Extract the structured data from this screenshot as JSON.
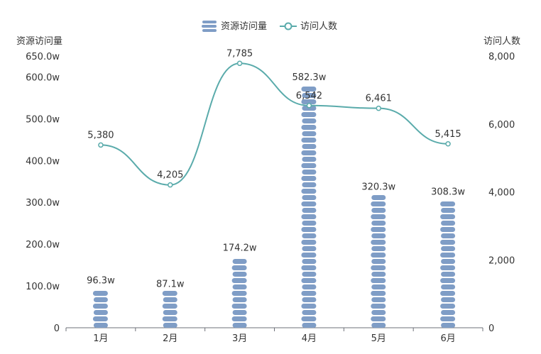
{
  "chart_data": {
    "type": "bar",
    "categories": [
      "1月",
      "2月",
      "3月",
      "4月",
      "5月",
      "6月"
    ],
    "series": [
      {
        "name": "资源访问量",
        "type": "bar",
        "axis": "left",
        "values": [
          96.3,
          87.1,
          174.2,
          582.3,
          320.3,
          308.3
        ],
        "labels": [
          "96.3w",
          "87.1w",
          "174.2w",
          "582.3w",
          "320.3w",
          "308.3w"
        ],
        "color": "#7f9dc6"
      },
      {
        "name": "访问人数",
        "type": "line",
        "axis": "right",
        "smooth": true,
        "values": [
          5380,
          4205,
          7785,
          6542,
          6461,
          5415
        ],
        "labels": [
          "5,380",
          "4,205",
          "7,785",
          "6,542",
          "6,461",
          "5,415"
        ],
        "color": "#5aabab"
      }
    ],
    "y_left": {
      "name": "资源访问量",
      "ticks": [
        0,
        100,
        200,
        300,
        400,
        500,
        600,
        650
      ],
      "tick_labels": [
        "0",
        "100.0w",
        "200.0w",
        "300.0w",
        "400.0w",
        "500.0w",
        "600.0w",
        "650.0w"
      ],
      "min": 0,
      "max": 650
    },
    "y_right": {
      "name": "访问人数",
      "ticks": [
        0,
        2000,
        4000,
        6000,
        8000
      ],
      "tick_labels": [
        "0",
        "2,000",
        "4,000",
        "6,000",
        "8,000"
      ],
      "min": 0,
      "max": 8000
    },
    "legend_position": "top-center",
    "grid": false
  }
}
